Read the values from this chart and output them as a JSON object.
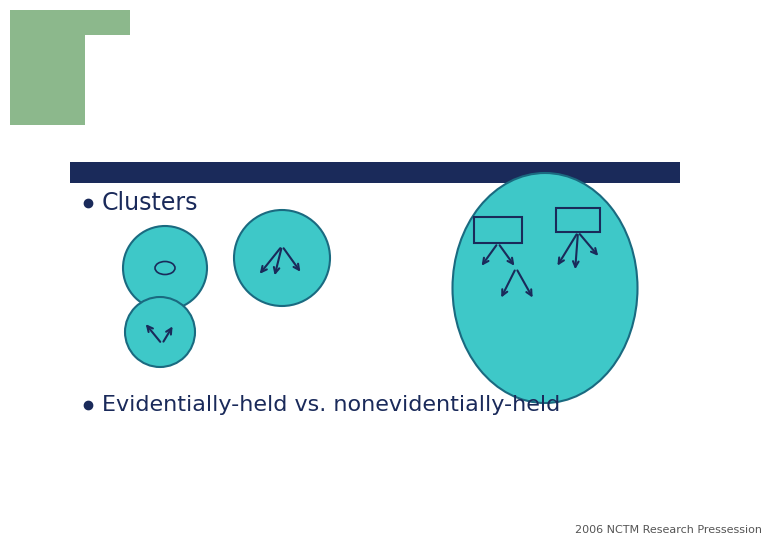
{
  "bg_color": "#ffffff",
  "green_rect_color": "#8cb88c",
  "teal_color": "#3ec8c8",
  "dark_navy": "#1a2a5a",
  "banner_color": "#1a2a5a",
  "title": "Clusters",
  "bullet2": "Evidentially-held vs. nonevidentially-held",
  "footer": "2006 NCTM Research Pressession",
  "circle_edge": "#1a6a80",
  "text_color": "#1a2a5a",
  "gray_text": "#555555"
}
